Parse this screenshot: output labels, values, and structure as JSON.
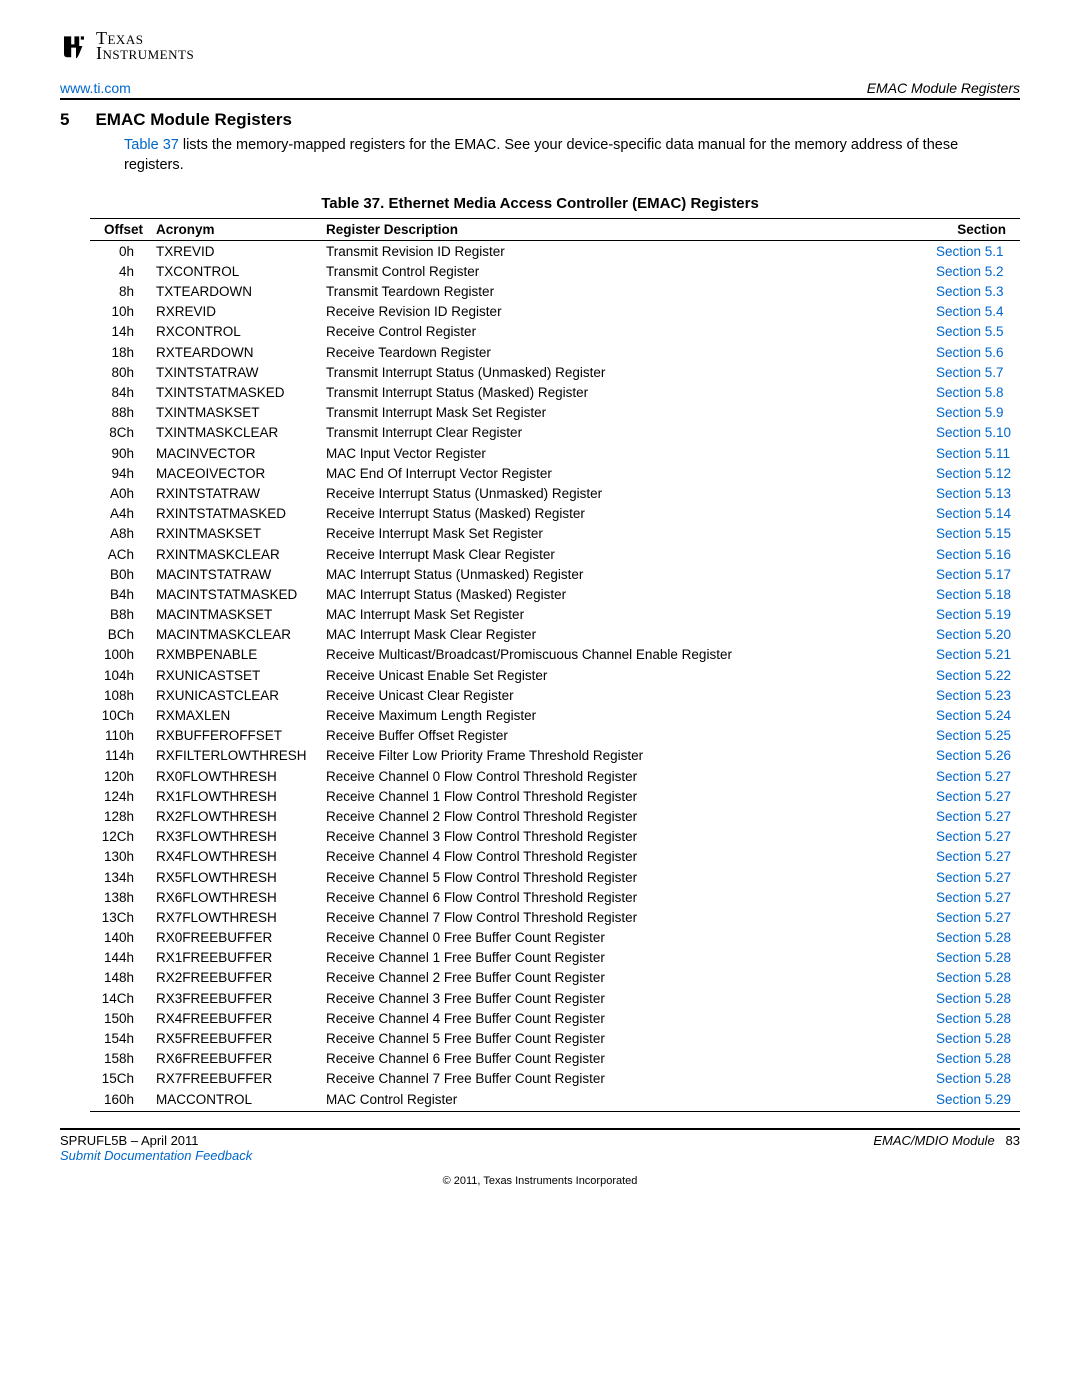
{
  "logo": {
    "top": "Texas",
    "bottom": "Instruments"
  },
  "header": {
    "left": "www.ti.com",
    "right": "EMAC Module Registers"
  },
  "section": {
    "number": "5",
    "title": "EMAC Module Registers"
  },
  "intro": {
    "link": "Table 37",
    "rest": " lists the memory-mapped registers for the EMAC. See your device-specific data manual for the memory address of these registers."
  },
  "table": {
    "caption": "Table 37. Ethernet Media Access Controller (EMAC) Registers",
    "columns": {
      "offset": "Offset",
      "acronym": "Acronym",
      "desc": "Register Description",
      "section": "Section"
    },
    "rows": [
      {
        "offset": "0h",
        "acronym": "TXREVID",
        "desc": "Transmit Revision ID Register",
        "section": "Section 5.1"
      },
      {
        "offset": "4h",
        "acronym": "TXCONTROL",
        "desc": "Transmit Control Register",
        "section": "Section 5.2"
      },
      {
        "offset": "8h",
        "acronym": "TXTEARDOWN",
        "desc": "Transmit Teardown Register",
        "section": "Section 5.3"
      },
      {
        "offset": "10h",
        "acronym": "RXREVID",
        "desc": "Receive Revision ID Register",
        "section": "Section 5.4"
      },
      {
        "offset": "14h",
        "acronym": "RXCONTROL",
        "desc": "Receive Control Register",
        "section": "Section 5.5"
      },
      {
        "offset": "18h",
        "acronym": "RXTEARDOWN",
        "desc": "Receive Teardown Register",
        "section": "Section 5.6"
      },
      {
        "offset": "80h",
        "acronym": "TXINTSTATRAW",
        "desc": "Transmit Interrupt Status (Unmasked) Register",
        "section": "Section 5.7"
      },
      {
        "offset": "84h",
        "acronym": "TXINTSTATMASKED",
        "desc": "Transmit Interrupt Status (Masked) Register",
        "section": "Section 5.8"
      },
      {
        "offset": "88h",
        "acronym": "TXINTMASKSET",
        "desc": "Transmit Interrupt Mask Set Register",
        "section": "Section 5.9"
      },
      {
        "offset": "8Ch",
        "acronym": "TXINTMASKCLEAR",
        "desc": "Transmit Interrupt Clear Register",
        "section": "Section 5.10"
      },
      {
        "offset": "90h",
        "acronym": "MACINVECTOR",
        "desc": "MAC Input Vector Register",
        "section": "Section 5.11"
      },
      {
        "offset": "94h",
        "acronym": "MACEOIVECTOR",
        "desc": "MAC End Of Interrupt Vector Register",
        "section": "Section 5.12"
      },
      {
        "offset": "A0h",
        "acronym": "RXINTSTATRAW",
        "desc": "Receive Interrupt Status (Unmasked) Register",
        "section": "Section 5.13"
      },
      {
        "offset": "A4h",
        "acronym": "RXINTSTATMASKED",
        "desc": "Receive Interrupt Status (Masked) Register",
        "section": "Section 5.14"
      },
      {
        "offset": "A8h",
        "acronym": "RXINTMASKSET",
        "desc": "Receive Interrupt Mask Set Register",
        "section": "Section 5.15"
      },
      {
        "offset": "ACh",
        "acronym": "RXINTMASKCLEAR",
        "desc": "Receive Interrupt Mask Clear Register",
        "section": "Section 5.16"
      },
      {
        "offset": "B0h",
        "acronym": "MACINTSTATRAW",
        "desc": "MAC Interrupt Status (Unmasked) Register",
        "section": "Section 5.17"
      },
      {
        "offset": "B4h",
        "acronym": "MACINTSTATMASKED",
        "desc": "MAC Interrupt Status (Masked) Register",
        "section": "Section 5.18"
      },
      {
        "offset": "B8h",
        "acronym": "MACINTMASKSET",
        "desc": "MAC Interrupt Mask Set Register",
        "section": "Section 5.19"
      },
      {
        "offset": "BCh",
        "acronym": "MACINTMASKCLEAR",
        "desc": "MAC Interrupt Mask Clear Register",
        "section": "Section 5.20"
      },
      {
        "offset": "100h",
        "acronym": "RXMBPENABLE",
        "desc": "Receive Multicast/Broadcast/Promiscuous Channel Enable Register",
        "section": "Section 5.21"
      },
      {
        "offset": "104h",
        "acronym": "RXUNICASTSET",
        "desc": "Receive Unicast Enable Set Register",
        "section": "Section 5.22"
      },
      {
        "offset": "108h",
        "acronym": "RXUNICASTCLEAR",
        "desc": "Receive Unicast Clear Register",
        "section": "Section 5.23"
      },
      {
        "offset": "10Ch",
        "acronym": "RXMAXLEN",
        "desc": "Receive Maximum Length Register",
        "section": "Section 5.24"
      },
      {
        "offset": "110h",
        "acronym": "RXBUFFEROFFSET",
        "desc": "Receive Buffer Offset Register",
        "section": "Section 5.25"
      },
      {
        "offset": "114h",
        "acronym": "RXFILTERLOWTHRESH",
        "desc": "Receive Filter Low Priority Frame Threshold Register",
        "section": "Section 5.26"
      },
      {
        "offset": "120h",
        "acronym": "RX0FLOWTHRESH",
        "desc": "Receive Channel 0 Flow Control Threshold Register",
        "section": "Section 5.27"
      },
      {
        "offset": "124h",
        "acronym": "RX1FLOWTHRESH",
        "desc": "Receive Channel 1 Flow Control Threshold Register",
        "section": "Section 5.27"
      },
      {
        "offset": "128h",
        "acronym": "RX2FLOWTHRESH",
        "desc": "Receive Channel 2 Flow Control Threshold Register",
        "section": "Section 5.27"
      },
      {
        "offset": "12Ch",
        "acronym": "RX3FLOWTHRESH",
        "desc": "Receive Channel 3 Flow Control Threshold Register",
        "section": "Section 5.27"
      },
      {
        "offset": "130h",
        "acronym": "RX4FLOWTHRESH",
        "desc": "Receive Channel 4 Flow Control Threshold Register",
        "section": "Section 5.27"
      },
      {
        "offset": "134h",
        "acronym": "RX5FLOWTHRESH",
        "desc": "Receive Channel 5 Flow Control Threshold Register",
        "section": "Section 5.27"
      },
      {
        "offset": "138h",
        "acronym": "RX6FLOWTHRESH",
        "desc": "Receive Channel 6 Flow Control Threshold Register",
        "section": "Section 5.27"
      },
      {
        "offset": "13Ch",
        "acronym": "RX7FLOWTHRESH",
        "desc": "Receive Channel 7 Flow Control Threshold Register",
        "section": "Section 5.27"
      },
      {
        "offset": "140h",
        "acronym": "RX0FREEBUFFER",
        "desc": "Receive Channel 0 Free Buffer Count Register",
        "section": "Section 5.28"
      },
      {
        "offset": "144h",
        "acronym": "RX1FREEBUFFER",
        "desc": "Receive Channel 1 Free Buffer Count Register",
        "section": "Section 5.28"
      },
      {
        "offset": "148h",
        "acronym": "RX2FREEBUFFER",
        "desc": "Receive Channel 2 Free Buffer Count Register",
        "section": "Section 5.28"
      },
      {
        "offset": "14Ch",
        "acronym": "RX3FREEBUFFER",
        "desc": "Receive Channel 3 Free Buffer Count Register",
        "section": "Section 5.28"
      },
      {
        "offset": "150h",
        "acronym": "RX4FREEBUFFER",
        "desc": "Receive Channel 4 Free Buffer Count Register",
        "section": "Section 5.28"
      },
      {
        "offset": "154h",
        "acronym": "RX5FREEBUFFER",
        "desc": "Receive Channel 5 Free Buffer Count Register",
        "section": "Section 5.28"
      },
      {
        "offset": "158h",
        "acronym": "RX6FREEBUFFER",
        "desc": "Receive Channel 6 Free Buffer Count Register",
        "section": "Section 5.28"
      },
      {
        "offset": "15Ch",
        "acronym": "RX7FREEBUFFER",
        "desc": "Receive Channel 7 Free Buffer Count Register",
        "section": "Section 5.28"
      },
      {
        "offset": "160h",
        "acronym": "MACCONTROL",
        "desc": "MAC Control Register",
        "section": "Section 5.29"
      }
    ]
  },
  "footer": {
    "left_doc": "SPRUFL5B",
    "left_date": "April 2011",
    "left_link": "Submit Documentation Feedback",
    "right_module": "EMAC/MDIO Module",
    "right_page": "83"
  },
  "copyright": "© 2011, Texas Instruments Incorporated"
}
